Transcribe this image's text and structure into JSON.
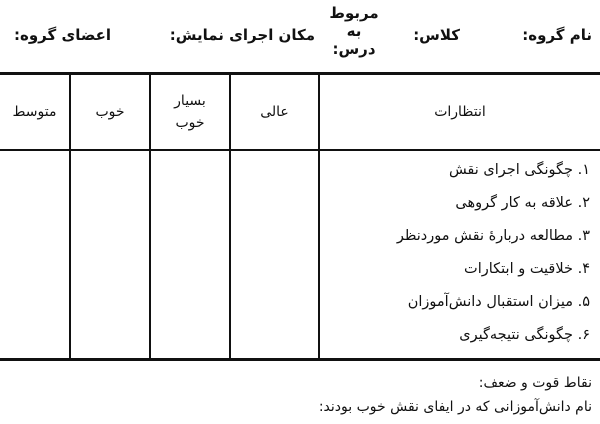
{
  "header": {
    "group_name": "نام گروه:",
    "class": "کلاس:",
    "related_lesson": "مربوط به درس:",
    "venue": "مکان اجرای نمایش:",
    "members": "اعضای گروه:"
  },
  "table": {
    "columns": [
      "انتظارات",
      "عالی",
      "بسیار خوب",
      "خوب",
      "متوسط"
    ],
    "rows": [
      "۱. چگونگی اجرای نقش",
      "۲. علاقه به کار گروهی",
      "۳. مطالعه دربارهٔ نقش موردنظر",
      "۴. خلاقیت و ابتکارات",
      "۵. میزان استقبال دانش‌آموزان",
      "۶. چگونگی نتیجه‌گیری"
    ]
  },
  "footer": {
    "strengths": "نقاط قوت و ضعف:",
    "good_students": "نام دانش‌آموزانی که در ایفای نقش خوب بودند:"
  }
}
